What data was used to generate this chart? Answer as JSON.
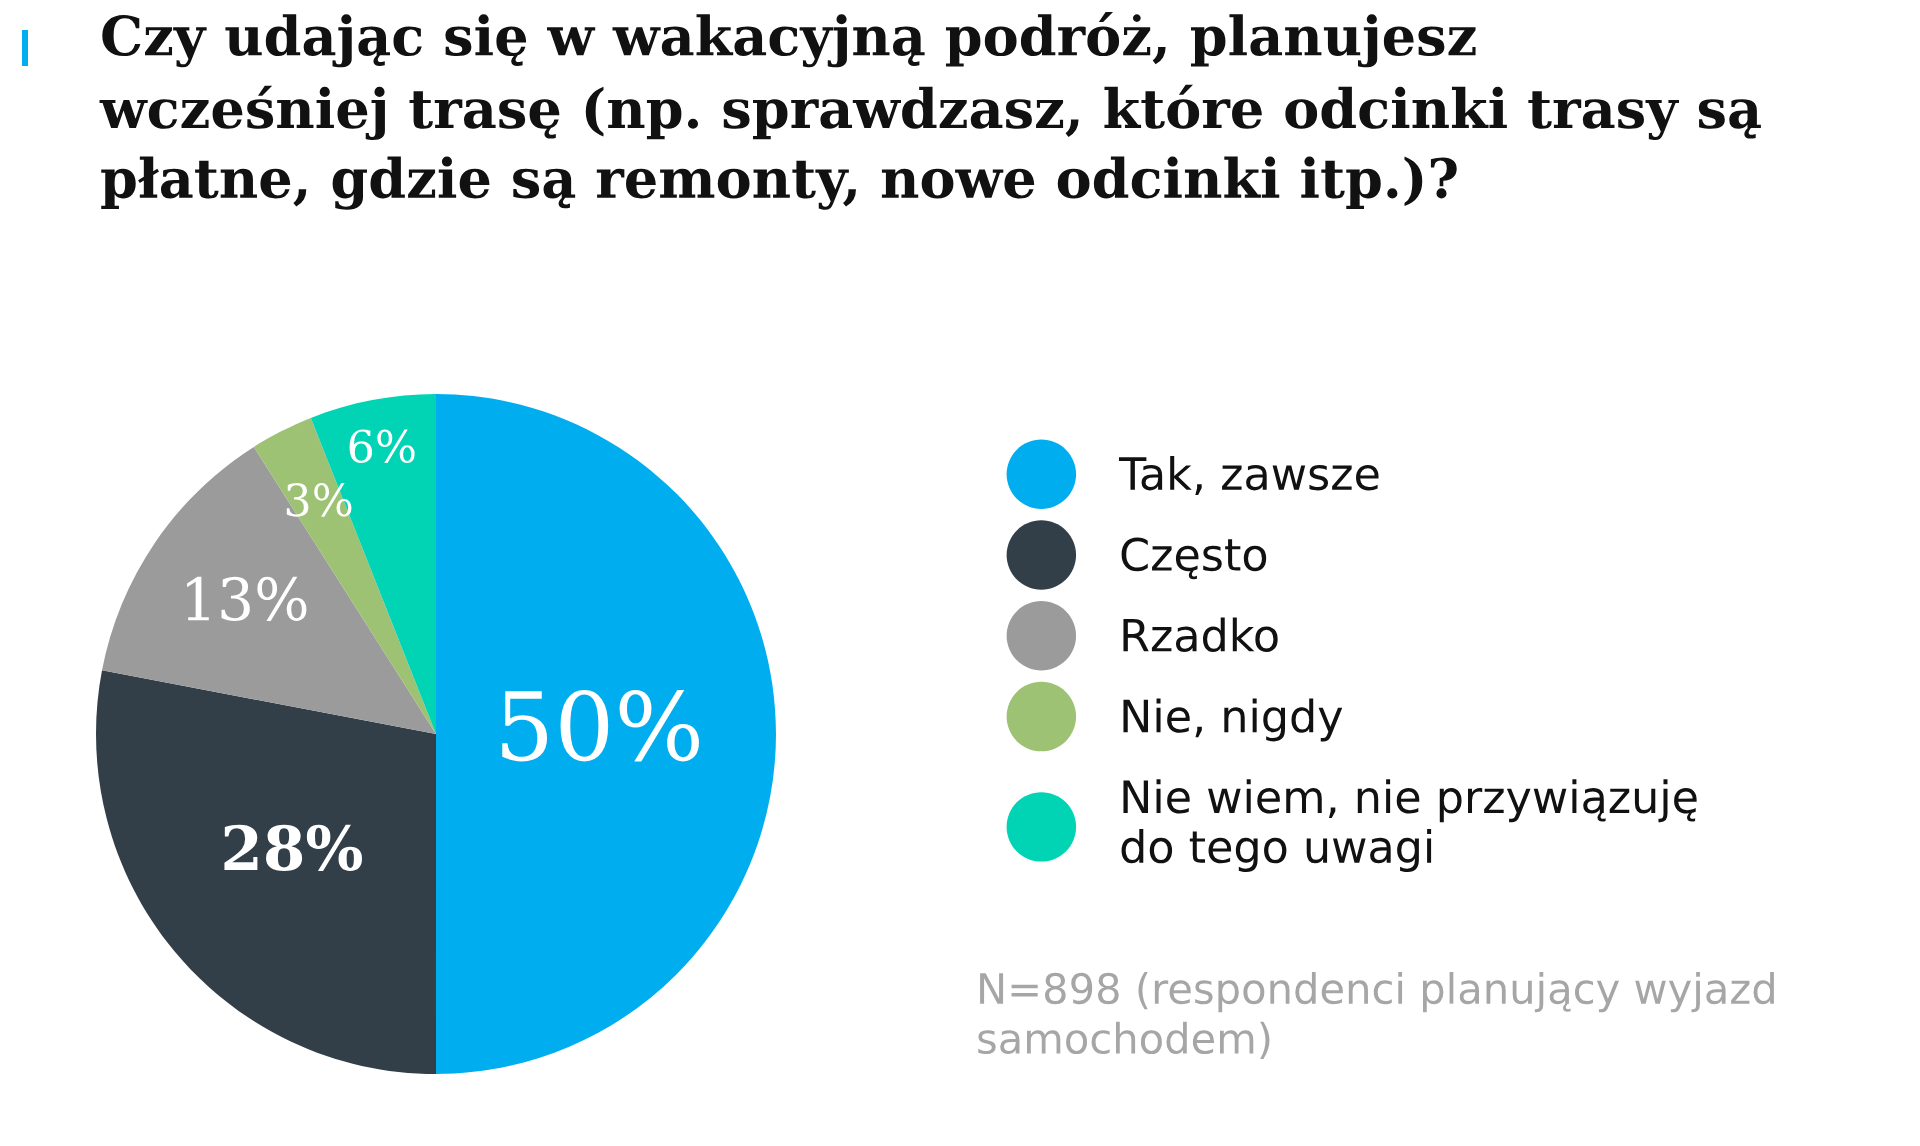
{
  "chart_data": {
    "type": "pie",
    "title": "Czy udając się w wakacyjną podróż, planujesz\nwcześniej trasę (np. sprawdzasz, które odcinki trasy są\npłatne, gdzie są remonty, nowe odcinki itp.)?",
    "categories": [
      "Tak, zawsze",
      "Często",
      "Rzadko",
      "Nie, nigdy",
      "Nie wiem, nie przywiązuję\ndo tego uwagi"
    ],
    "values": [
      50,
      28,
      13,
      3,
      6
    ],
    "colors": [
      "#00aeef",
      "#333f48",
      "#9b9b9b",
      "#9dc274",
      "#00d4b4"
    ],
    "value_labels": [
      "50%",
      "28%",
      "13%",
      "3%",
      "6%"
    ],
    "legend": "right",
    "annotations": [
      "N=898 (respondenci planujący wyjazd\nsamochodem)"
    ]
  }
}
